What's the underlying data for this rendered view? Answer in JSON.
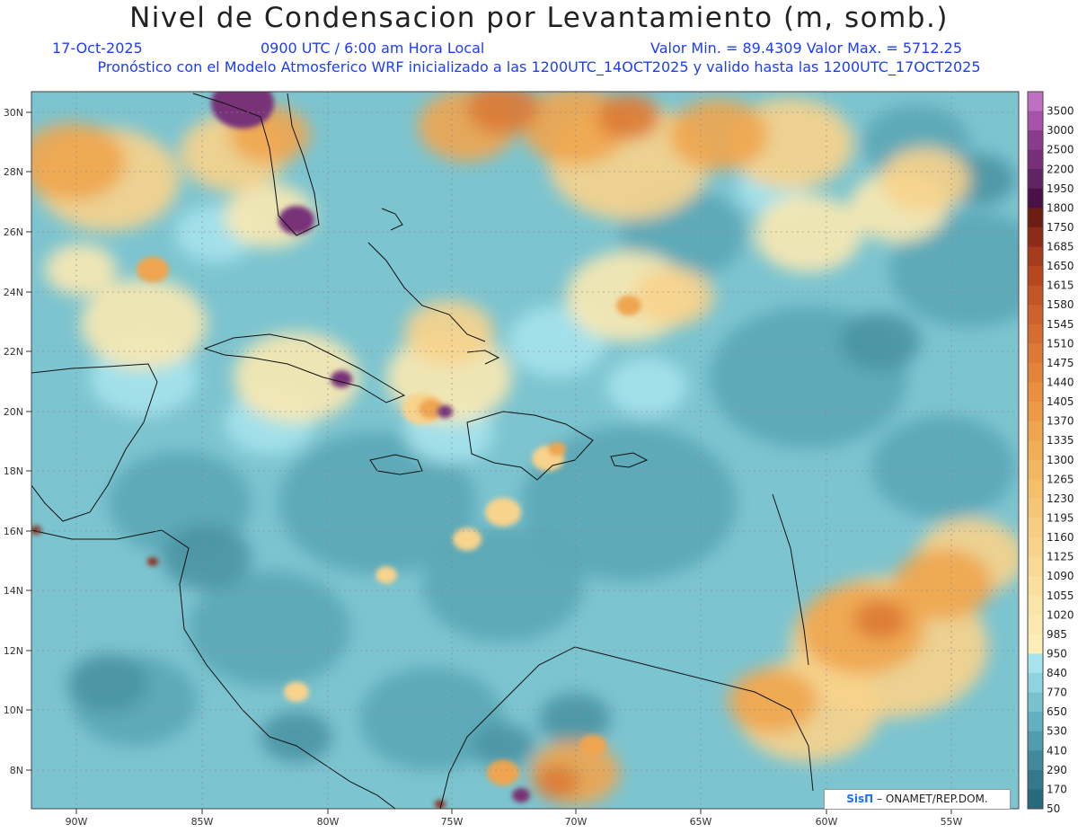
{
  "header": {
    "title": "Nivel de Condensacion por Levantamiento (m, somb.)",
    "date": "17-Oct-2025",
    "time": "0900 UTC / 6:00 am Hora Local",
    "minmax": "Valor Min. = 89.4309   Valor Max. = 5712.25",
    "model_line": "Pronóstico con el Modelo Atmosferico WRF inicializado a las 1200UTC_14OCT2025 y valido hasta las  1200UTC_17OCT2025"
  },
  "axes": {
    "x_ticks": [
      "90W",
      "85W",
      "80W",
      "75W",
      "70W",
      "65W",
      "60W",
      "55W"
    ],
    "y_ticks": [
      "30N",
      "28N",
      "26N",
      "24N",
      "22N",
      "20N",
      "18N",
      "16N",
      "14N",
      "12N",
      "10N",
      "8N"
    ]
  },
  "colorbar": {
    "labels": [
      "3500",
      "3000",
      "2500",
      "2200",
      "1950",
      "1800",
      "1750",
      "1685",
      "1650",
      "1615",
      "1580",
      "1545",
      "1510",
      "1475",
      "1440",
      "1405",
      "1370",
      "1335",
      "1300",
      "1265",
      "1230",
      "1195",
      "1160",
      "1125",
      "1090",
      "1055",
      "1020",
      "985",
      "950",
      "840",
      "770",
      "650",
      "530",
      "410",
      "290",
      "170",
      "50"
    ],
    "colors": [
      "#c070c0",
      "#a652a8",
      "#8a3c8c",
      "#773078",
      "#5e2464",
      "#4a1048",
      "#6e1d14",
      "#8c2c18",
      "#a53a1c",
      "#b8471f",
      "#c45526",
      "#cd622c",
      "#d56d31",
      "#dc7936",
      "#e3843b",
      "#e88f40",
      "#ec9a46",
      "#efa54f",
      "#f1ae58",
      "#f3b762",
      "#f5bf6c",
      "#f6c677",
      "#f7cd82",
      "#f8d38c",
      "#f9d996",
      "#fadf9f",
      "#fbe4a8",
      "#fbe9b1",
      "#fcedb9",
      "#a6e3ec",
      "#8ed3df",
      "#78c2d0",
      "#63b0c0",
      "#519daf",
      "#418a9d",
      "#33788b",
      "#276a7c"
    ]
  },
  "map": {
    "colors": {
      "ocean_base": "#7cc4d0",
      "ocean_deep": "#5ba7b6",
      "ocean_darker": "#4a93a3",
      "light_cyan": "#a6e3ec",
      "cream": "#fbe9b1",
      "yellow": "#f8d38c",
      "orange": "#efa54f",
      "dark_orange": "#dc7936",
      "brown": "#8c2c18",
      "purple": "#773078",
      "coast": "#111111"
    }
  },
  "credit": {
    "brand": "SisΠ",
    "text": " – ONAMET/REP.DOM."
  }
}
